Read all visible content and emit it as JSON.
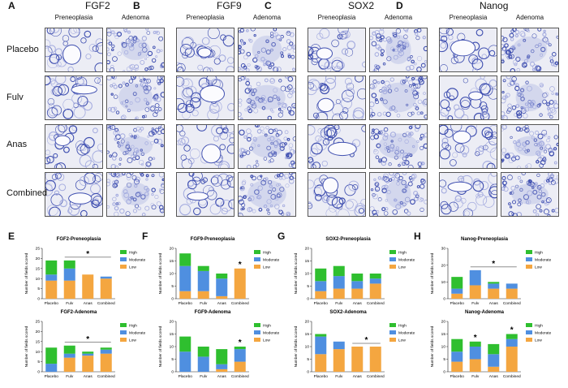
{
  "figure": {
    "markers": [
      {
        "label": "FGF2",
        "letter": "A"
      },
      {
        "label": "FGF9",
        "letter": "B"
      },
      {
        "label": "SOX2",
        "letter": "C"
      },
      {
        "label": "Nanog",
        "letter": "D"
      }
    ],
    "column_headers": [
      "Preneoplasia",
      "Adenoma"
    ],
    "row_labels": [
      "Placebo",
      "Fulv",
      "Anas",
      "Combined"
    ],
    "panel_colors": {
      "stain": "#3f4fb0",
      "background": "#ecedf5",
      "tissue_light": "#a7aee0"
    }
  },
  "legend": {
    "high": "High",
    "moderate": "Moderate",
    "low": "Low"
  },
  "colors": {
    "high": "#2fbf2f",
    "moderate": "#4f8fe0",
    "low": "#f4a640"
  },
  "chart_data": [
    {
      "letter": "E",
      "type": "bar",
      "stacked": true,
      "title": "FGF2-Preneoplasia",
      "ylabel": "Number of fields scored",
      "ylim": [
        0,
        25
      ],
      "ticks": [
        0,
        5,
        10,
        15,
        20,
        25
      ],
      "categories": [
        "Placebo",
        "Fulv",
        "Anas",
        "Combined"
      ],
      "series": [
        {
          "name": "Low",
          "values": [
            9,
            9,
            12,
            10
          ]
        },
        {
          "name": "Moderate",
          "values": [
            3,
            6,
            0,
            1
          ]
        },
        {
          "name": "High",
          "values": [
            7,
            4,
            0,
            0
          ]
        }
      ],
      "significance": {
        "from": 1,
        "to": 3,
        "label": "*"
      }
    },
    {
      "letter": "F",
      "type": "bar",
      "stacked": true,
      "title": "FGF9-Preneoplasia",
      "ylabel": "Number of fields scored",
      "ylim": [
        0,
        20
      ],
      "ticks": [
        0,
        5,
        10,
        15,
        20
      ],
      "categories": [
        "Placebo",
        "Fulv",
        "Anas",
        "Combined"
      ],
      "series": [
        {
          "name": "Low",
          "values": [
            3,
            3,
            1,
            12
          ]
        },
        {
          "name": "Moderate",
          "values": [
            10,
            8,
            7,
            0
          ]
        },
        {
          "name": "High",
          "values": [
            5,
            2,
            2,
            0
          ]
        }
      ],
      "significance": {
        "single": 3,
        "label": "*"
      }
    },
    {
      "letter": "G",
      "type": "bar",
      "stacked": true,
      "title": "SOX2-Preneoplasia",
      "ylabel": "Number of fields scored",
      "ylim": [
        0,
        20
      ],
      "ticks": [
        0,
        5,
        10,
        15,
        20
      ],
      "categories": [
        "Placebo",
        "Fulv",
        "Anas",
        "Combined"
      ],
      "series": [
        {
          "name": "Low",
          "values": [
            3,
            4,
            4,
            6
          ]
        },
        {
          "name": "Moderate",
          "values": [
            4,
            5,
            3,
            2
          ]
        },
        {
          "name": "High",
          "values": [
            5,
            4,
            3,
            2
          ]
        }
      ],
      "significance": null
    },
    {
      "letter": "H",
      "type": "bar",
      "stacked": true,
      "title": "Nanog-Preneoplasia",
      "ylabel": "Number of fields scored",
      "ylim": [
        0,
        30
      ],
      "ticks": [
        0,
        10,
        20,
        30
      ],
      "categories": [
        "Placebo",
        "Fulv",
        "Anas",
        "Combined"
      ],
      "series": [
        {
          "name": "Low",
          "values": [
            3,
            8,
            6,
            6
          ]
        },
        {
          "name": "Moderate",
          "values": [
            3,
            9,
            3,
            3
          ]
        },
        {
          "name": "High",
          "values": [
            7,
            0,
            1,
            0
          ]
        }
      ],
      "significance": {
        "from": 1,
        "to": 3,
        "label": "*"
      }
    },
    {
      "letter": "",
      "type": "bar",
      "stacked": true,
      "title": "FGF2-Adenoma",
      "ylabel": "Number of fields scored",
      "ylim": [
        0,
        25
      ],
      "ticks": [
        0,
        5,
        10,
        15,
        20,
        25
      ],
      "categories": [
        "Placebo",
        "Fulv",
        "Anas",
        "Combined"
      ],
      "series": [
        {
          "name": "Low",
          "values": [
            0,
            7,
            8,
            9
          ]
        },
        {
          "name": "Moderate",
          "values": [
            4,
            2,
            1,
            2
          ]
        },
        {
          "name": "High",
          "values": [
            8,
            4,
            1,
            1
          ]
        }
      ],
      "significance": {
        "from": 1,
        "to": 3,
        "label": "*"
      }
    },
    {
      "letter": "",
      "type": "bar",
      "stacked": true,
      "title": "FGF9-Adenoma",
      "ylabel": "Number of fields scored",
      "ylim": [
        0,
        20
      ],
      "ticks": [
        0,
        5,
        10,
        15,
        20
      ],
      "categories": [
        "Placebo",
        "Fulv",
        "Anas",
        "Combined"
      ],
      "series": [
        {
          "name": "Low",
          "values": [
            0,
            0,
            1,
            4
          ]
        },
        {
          "name": "Moderate",
          "values": [
            8,
            6,
            2,
            5
          ]
        },
        {
          "name": "High",
          "values": [
            6,
            4,
            6,
            1
          ]
        }
      ],
      "significance": {
        "single": 3,
        "label": "*"
      }
    },
    {
      "letter": "",
      "type": "bar",
      "stacked": true,
      "title": "SOX2-Adenoma",
      "ylabel": "Number of fields scored",
      "ylim": [
        0,
        20
      ],
      "ticks": [
        0,
        5,
        10,
        15,
        20
      ],
      "categories": [
        "Placebo",
        "Fulv",
        "Anas",
        "Combined"
      ],
      "series": [
        {
          "name": "Low",
          "values": [
            7,
            9,
            10,
            10
          ]
        },
        {
          "name": "Moderate",
          "values": [
            7,
            3,
            0,
            0
          ]
        },
        {
          "name": "High",
          "values": [
            1,
            0,
            0,
            0
          ]
        }
      ],
      "significance": {
        "from": 2,
        "to": 3,
        "label": "*"
      }
    },
    {
      "letter": "",
      "type": "bar",
      "stacked": true,
      "title": "Nanog-Adenoma",
      "ylabel": "Number of fields scored",
      "ylim": [
        0,
        20
      ],
      "ticks": [
        0,
        5,
        10,
        15,
        20
      ],
      "categories": [
        "Placebo",
        "Fulv",
        "Anas",
        "Combined"
      ],
      "series": [
        {
          "name": "Low",
          "values": [
            4,
            5,
            2,
            10
          ]
        },
        {
          "name": "Moderate",
          "values": [
            4,
            5,
            5,
            3
          ]
        },
        {
          "name": "High",
          "values": [
            5,
            2,
            4,
            2
          ]
        }
      ],
      "significance": {
        "stars": [
          1,
          3
        ],
        "label": "*"
      }
    }
  ]
}
